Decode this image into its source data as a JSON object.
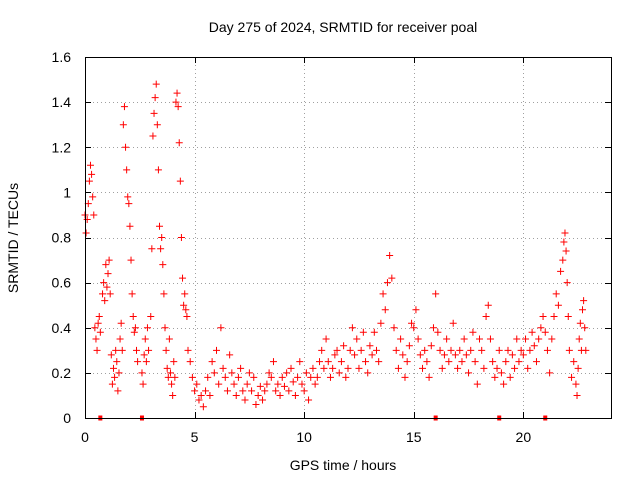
{
  "chart_data": {
    "type": "scatter",
    "title": "Day 275 of 2024, SRMTID for receiver poal",
    "xlabel": "GPS time / hours",
    "ylabel": "SRMTID / TECUs",
    "xlim": [
      0,
      24
    ],
    "ylim": [
      0,
      1.6
    ],
    "grid": true,
    "marker": "+",
    "color": "#ff0000",
    "x_ticks": [
      0,
      5,
      10,
      15,
      20
    ],
    "x_tick_labels": [
      "0",
      "5",
      "10",
      "15",
      "20"
    ],
    "y_ticks": [
      0,
      0.2,
      0.4,
      0.6,
      0.8,
      1.0,
      1.2,
      1.4,
      1.6
    ],
    "y_tick_labels": [
      "0",
      "0.2",
      "0.4",
      "0.6",
      "0.8",
      "1",
      "1.2",
      "1.4",
      "1.6"
    ],
    "zero_value_hours": [
      0.7,
      2.6,
      16.0,
      18.9,
      21.0
    ],
    "series": [
      {
        "name": "SRMTID",
        "points": [
          [
            0.0,
            0.9
          ],
          [
            0.05,
            0.82
          ],
          [
            0.1,
            0.88
          ],
          [
            0.15,
            0.95
          ],
          [
            0.2,
            1.05
          ],
          [
            0.25,
            1.12
          ],
          [
            0.3,
            1.08
          ],
          [
            0.35,
            0.98
          ],
          [
            0.4,
            0.9
          ],
          [
            0.45,
            0.4
          ],
          [
            0.5,
            0.35
          ],
          [
            0.55,
            0.3
          ],
          [
            0.6,
            0.42
          ],
          [
            0.65,
            0.45
          ],
          [
            0.7,
            0.38
          ],
          [
            0.8,
            0.55
          ],
          [
            0.85,
            0.6
          ],
          [
            0.9,
            0.52
          ],
          [
            0.95,
            0.68
          ],
          [
            1.0,
            0.58
          ],
          [
            1.05,
            0.64
          ],
          [
            1.1,
            0.7
          ],
          [
            1.15,
            0.55
          ],
          [
            1.2,
            0.28
          ],
          [
            1.25,
            0.15
          ],
          [
            1.3,
            0.22
          ],
          [
            1.35,
            0.18
          ],
          [
            1.4,
            0.3
          ],
          [
            1.45,
            0.25
          ],
          [
            1.5,
            0.12
          ],
          [
            1.55,
            0.2
          ],
          [
            1.6,
            0.35
          ],
          [
            1.65,
            0.42
          ],
          [
            1.7,
            0.3
          ],
          [
            1.75,
            1.3
          ],
          [
            1.8,
            1.38
          ],
          [
            1.85,
            1.2
          ],
          [
            1.9,
            1.1
          ],
          [
            1.95,
            0.98
          ],
          [
            2.0,
            0.95
          ],
          [
            2.05,
            0.85
          ],
          [
            2.1,
            0.7
          ],
          [
            2.15,
            0.55
          ],
          [
            2.2,
            0.45
          ],
          [
            2.25,
            0.38
          ],
          [
            2.3,
            0.4
          ],
          [
            2.35,
            0.3
          ],
          [
            2.4,
            0.25
          ],
          [
            2.6,
            0.2
          ],
          [
            2.65,
            0.15
          ],
          [
            2.7,
            0.28
          ],
          [
            2.75,
            0.35
          ],
          [
            2.8,
            0.25
          ],
          [
            2.85,
            0.4
          ],
          [
            2.9,
            0.3
          ],
          [
            3.0,
            0.45
          ],
          [
            3.05,
            0.75
          ],
          [
            3.1,
            1.25
          ],
          [
            3.15,
            1.35
          ],
          [
            3.2,
            1.42
          ],
          [
            3.25,
            1.48
          ],
          [
            3.3,
            1.3
          ],
          [
            3.35,
            1.1
          ],
          [
            3.4,
            0.85
          ],
          [
            3.45,
            0.75
          ],
          [
            3.5,
            0.8
          ],
          [
            3.55,
            0.68
          ],
          [
            3.6,
            0.55
          ],
          [
            3.65,
            0.4
          ],
          [
            3.7,
            0.3
          ],
          [
            3.75,
            0.22
          ],
          [
            3.8,
            0.18
          ],
          [
            3.85,
            0.35
          ],
          [
            3.9,
            0.2
          ],
          [
            3.95,
            0.15
          ],
          [
            4.0,
            0.1
          ],
          [
            4.05,
            0.25
          ],
          [
            4.1,
            0.18
          ],
          [
            4.15,
            1.4
          ],
          [
            4.2,
            1.44
          ],
          [
            4.25,
            1.38
          ],
          [
            4.3,
            1.22
          ],
          [
            4.35,
            1.05
          ],
          [
            4.4,
            0.8
          ],
          [
            4.45,
            0.62
          ],
          [
            4.5,
            0.5
          ],
          [
            4.55,
            0.55
          ],
          [
            4.6,
            0.48
          ],
          [
            4.65,
            0.45
          ],
          [
            4.7,
            0.3
          ],
          [
            4.8,
            0.25
          ],
          [
            4.9,
            0.18
          ],
          [
            5.0,
            0.12
          ],
          [
            5.1,
            0.15
          ],
          [
            5.2,
            0.08
          ],
          [
            5.3,
            0.1
          ],
          [
            5.4,
            0.05
          ],
          [
            5.5,
            0.12
          ],
          [
            5.6,
            0.18
          ],
          [
            5.7,
            0.1
          ],
          [
            5.8,
            0.25
          ],
          [
            5.9,
            0.2
          ],
          [
            6.0,
            0.3
          ],
          [
            6.1,
            0.15
          ],
          [
            6.2,
            0.4
          ],
          [
            6.3,
            0.22
          ],
          [
            6.4,
            0.18
          ],
          [
            6.5,
            0.12
          ],
          [
            6.6,
            0.28
          ],
          [
            6.7,
            0.2
          ],
          [
            6.8,
            0.15
          ],
          [
            6.9,
            0.1
          ],
          [
            7.0,
            0.18
          ],
          [
            7.1,
            0.22
          ],
          [
            7.2,
            0.12
          ],
          [
            7.3,
            0.08
          ],
          [
            7.4,
            0.15
          ],
          [
            7.5,
            0.2
          ],
          [
            7.6,
            0.12
          ],
          [
            7.7,
            0.18
          ],
          [
            7.8,
            0.06
          ],
          [
            7.9,
            0.1
          ],
          [
            8.0,
            0.14
          ],
          [
            8.1,
            0.08
          ],
          [
            8.2,
            0.12
          ],
          [
            8.3,
            0.15
          ],
          [
            8.4,
            0.2
          ],
          [
            8.5,
            0.18
          ],
          [
            8.6,
            0.25
          ],
          [
            8.7,
            0.12
          ],
          [
            8.8,
            0.15
          ],
          [
            8.9,
            0.1
          ],
          [
            9.0,
            0.18
          ],
          [
            9.1,
            0.14
          ],
          [
            9.2,
            0.2
          ],
          [
            9.3,
            0.12
          ],
          [
            9.4,
            0.22
          ],
          [
            9.5,
            0.16
          ],
          [
            9.6,
            0.1
          ],
          [
            9.7,
            0.18
          ],
          [
            9.8,
            0.25
          ],
          [
            9.9,
            0.15
          ],
          [
            10.0,
            0.12
          ],
          [
            10.1,
            0.2
          ],
          [
            10.2,
            0.08
          ],
          [
            10.3,
            0.18
          ],
          [
            10.4,
            0.22
          ],
          [
            10.5,
            0.15
          ],
          [
            10.6,
            0.18
          ],
          [
            10.7,
            0.25
          ],
          [
            10.8,
            0.3
          ],
          [
            10.9,
            0.22
          ],
          [
            11.0,
            0.35
          ],
          [
            11.1,
            0.25
          ],
          [
            11.2,
            0.18
          ],
          [
            11.3,
            0.22
          ],
          [
            11.4,
            0.28
          ],
          [
            11.5,
            0.3
          ],
          [
            11.6,
            0.2
          ],
          [
            11.7,
            0.25
          ],
          [
            11.8,
            0.32
          ],
          [
            11.9,
            0.18
          ],
          [
            12.0,
            0.22
          ],
          [
            12.1,
            0.3
          ],
          [
            12.2,
            0.4
          ],
          [
            12.3,
            0.28
          ],
          [
            12.4,
            0.35
          ],
          [
            12.5,
            0.22
          ],
          [
            12.6,
            0.3
          ],
          [
            12.7,
            0.38
          ],
          [
            12.8,
            0.25
          ],
          [
            12.9,
            0.2
          ],
          [
            13.0,
            0.32
          ],
          [
            13.1,
            0.28
          ],
          [
            13.2,
            0.38
          ],
          [
            13.3,
            0.3
          ],
          [
            13.4,
            0.25
          ],
          [
            13.5,
            0.42
          ],
          [
            13.6,
            0.55
          ],
          [
            13.7,
            0.48
          ],
          [
            13.8,
            0.6
          ],
          [
            13.9,
            0.72
          ],
          [
            14.0,
            0.62
          ],
          [
            14.1,
            0.4
          ],
          [
            14.2,
            0.3
          ],
          [
            14.3,
            0.22
          ],
          [
            14.4,
            0.35
          ],
          [
            14.5,
            0.28
          ],
          [
            14.6,
            0.18
          ],
          [
            14.7,
            0.25
          ],
          [
            14.8,
            0.32
          ],
          [
            14.9,
            0.42
          ],
          [
            15.0,
            0.4
          ],
          [
            15.1,
            0.48
          ],
          [
            15.2,
            0.35
          ],
          [
            15.3,
            0.28
          ],
          [
            15.4,
            0.22
          ],
          [
            15.5,
            0.3
          ],
          [
            15.6,
            0.25
          ],
          [
            15.7,
            0.18
          ],
          [
            15.8,
            0.32
          ],
          [
            15.9,
            0.4
          ],
          [
            16.0,
            0.55
          ],
          [
            16.1,
            0.38
          ],
          [
            16.2,
            0.3
          ],
          [
            16.3,
            0.22
          ],
          [
            16.4,
            0.28
          ],
          [
            16.5,
            0.35
          ],
          [
            16.6,
            0.25
          ],
          [
            16.7,
            0.3
          ],
          [
            16.8,
            0.42
          ],
          [
            16.9,
            0.28
          ],
          [
            17.0,
            0.22
          ],
          [
            17.1,
            0.3
          ],
          [
            17.2,
            0.25
          ],
          [
            17.3,
            0.35
          ],
          [
            17.4,
            0.28
          ],
          [
            17.5,
            0.2
          ],
          [
            17.6,
            0.3
          ],
          [
            17.7,
            0.38
          ],
          [
            17.8,
            0.25
          ],
          [
            17.9,
            0.15
          ],
          [
            18.0,
            0.35
          ],
          [
            18.1,
            0.3
          ],
          [
            18.2,
            0.22
          ],
          [
            18.3,
            0.45
          ],
          [
            18.4,
            0.5
          ],
          [
            18.5,
            0.35
          ],
          [
            18.6,
            0.25
          ],
          [
            18.7,
            0.18
          ],
          [
            18.8,
            0.22
          ],
          [
            18.9,
            0.3
          ],
          [
            19.0,
            0.2
          ],
          [
            19.1,
            0.15
          ],
          [
            19.2,
            0.25
          ],
          [
            19.3,
            0.3
          ],
          [
            19.4,
            0.18
          ],
          [
            19.5,
            0.28
          ],
          [
            19.6,
            0.22
          ],
          [
            19.7,
            0.35
          ],
          [
            19.8,
            0.25
          ],
          [
            19.9,
            0.3
          ],
          [
            20.0,
            0.28
          ],
          [
            20.1,
            0.35
          ],
          [
            20.2,
            0.22
          ],
          [
            20.3,
            0.3
          ],
          [
            20.4,
            0.38
          ],
          [
            20.5,
            0.32
          ],
          [
            20.6,
            0.25
          ],
          [
            20.7,
            0.35
          ],
          [
            20.8,
            0.4
          ],
          [
            20.9,
            0.45
          ],
          [
            21.0,
            0.38
          ],
          [
            21.1,
            0.3
          ],
          [
            21.2,
            0.2
          ],
          [
            21.3,
            0.35
          ],
          [
            21.4,
            0.45
          ],
          [
            21.5,
            0.55
          ],
          [
            21.6,
            0.5
          ],
          [
            21.7,
            0.65
          ],
          [
            21.8,
            0.7
          ],
          [
            21.85,
            0.78
          ],
          [
            21.9,
            0.82
          ],
          [
            21.95,
            0.74
          ],
          [
            22.0,
            0.6
          ],
          [
            22.05,
            0.45
          ],
          [
            22.1,
            0.3
          ],
          [
            22.2,
            0.18
          ],
          [
            22.3,
            0.25
          ],
          [
            22.4,
            0.15
          ],
          [
            22.45,
            0.1
          ],
          [
            22.5,
            0.22
          ],
          [
            22.55,
            0.35
          ],
          [
            22.6,
            0.42
          ],
          [
            22.65,
            0.3
          ],
          [
            22.7,
            0.48
          ],
          [
            22.75,
            0.52
          ],
          [
            22.8,
            0.4
          ],
          [
            22.85,
            0.3
          ]
        ]
      }
    ]
  }
}
